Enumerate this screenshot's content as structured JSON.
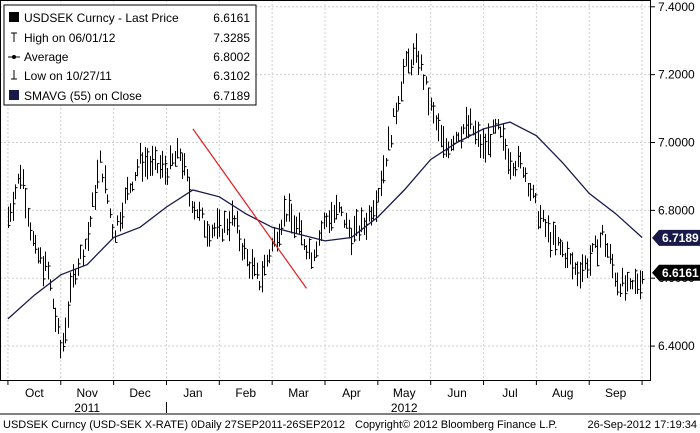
{
  "colors": {
    "background": "#ffffff",
    "plot_background": "#ffffff",
    "price": "#000000",
    "sma": "#1a1a4a",
    "trendline": "#e02020",
    "grid": "#d0d0d0",
    "tag_sma_bg": "#1a1a4a",
    "tag_price_bg": "#000000",
    "tag_text": "#ffffff"
  },
  "legend": [
    {
      "label": "USDSEK Curncy  - Last Price",
      "value": "6.6161",
      "icon": "filled-square-icon"
    },
    {
      "label": "High on 06/01/12",
      "value": "7.3285",
      "icon": "high-marker-icon"
    },
    {
      "label": "Average",
      "value": "6.8002",
      "icon": "average-marker-icon"
    },
    {
      "label": "Low on 10/27/11",
      "value": "6.3102",
      "icon": "low-marker-icon"
    },
    {
      "label": "SMAVG (55) on Close",
      "value": "6.7189",
      "icon": "navy-square-icon"
    }
  ],
  "price_tags": [
    {
      "value": 6.7189,
      "text": "6.7189",
      "kind": "sma"
    },
    {
      "value": 6.6161,
      "text": "6.6161",
      "kind": "price"
    }
  ],
  "footer": {
    "left": "USDSEK Curncy (USD-SEK X-RATE) 0Daily 27SEP2011-26SEP2012",
    "center": "Copyright© 2012 Bloomberg Finance L.P.",
    "right": "26-Sep-2012 17:19:34"
  },
  "chart_data": {
    "type": "line",
    "title": "",
    "xlabel": "",
    "ylabel": "",
    "ylim": [
      6.3,
      7.42
    ],
    "y_ticks": [
      6.4,
      6.6,
      6.8,
      7.0,
      7.2,
      7.4
    ],
    "y_tick_labels": [
      "6.4000",
      "6.6000",
      "6.8000",
      "7.0000",
      "7.2000",
      "7.4000"
    ],
    "y_axis_side": "right",
    "grid": true,
    "legend_position": "top-left",
    "x_ticks": [
      {
        "label": "Oct",
        "x": 0.5
      },
      {
        "label": "Nov",
        "x": 1.5
      },
      {
        "label": "Dec",
        "x": 2.5
      },
      {
        "label": "Jan",
        "x": 3.5
      },
      {
        "label": "Feb",
        "x": 4.5
      },
      {
        "label": "Mar",
        "x": 5.5
      },
      {
        "label": "Apr",
        "x": 6.5
      },
      {
        "label": "May",
        "x": 7.5
      },
      {
        "label": "Jun",
        "x": 8.5
      },
      {
        "label": "Jul",
        "x": 9.5
      },
      {
        "label": "Aug",
        "x": 10.5
      },
      {
        "label": "Sep",
        "x": 11.5
      }
    ],
    "x_month_boundaries": [
      0,
      1,
      2,
      3,
      4,
      5,
      6,
      7,
      8,
      9,
      10,
      11,
      12
    ],
    "years": [
      {
        "label": "2011",
        "x": 1.5
      },
      {
        "label": "2012",
        "x": 7.5
      }
    ],
    "year_separator_x": 3.0,
    "xlim": [
      -0.15,
      12.15
    ],
    "series": [
      {
        "name": "USDSEK Curncy  - Last Price",
        "style": "price",
        "x": [
          0.0,
          0.25,
          0.5,
          0.75,
          1.0,
          1.25,
          1.5,
          1.75,
          2.0,
          2.25,
          2.5,
          2.75,
          3.0,
          3.25,
          3.5,
          3.75,
          4.0,
          4.25,
          4.5,
          4.75,
          5.0,
          5.25,
          5.5,
          5.75,
          6.0,
          6.25,
          6.5,
          6.75,
          7.0,
          7.25,
          7.5,
          7.75,
          8.0,
          8.25,
          8.5,
          8.75,
          9.0,
          9.25,
          9.5,
          9.75,
          10.0,
          10.25,
          10.5,
          10.75,
          11.0,
          11.25,
          11.5,
          11.75,
          12.0
        ],
        "y": [
          6.78,
          6.92,
          6.68,
          6.62,
          6.38,
          6.62,
          6.72,
          6.95,
          6.73,
          6.85,
          6.95,
          6.93,
          6.92,
          6.97,
          6.82,
          6.75,
          6.74,
          6.78,
          6.66,
          6.59,
          6.7,
          6.8,
          6.74,
          6.67,
          6.77,
          6.8,
          6.73,
          6.76,
          6.85,
          7.03,
          7.22,
          7.26,
          7.1,
          6.98,
          7.03,
          7.05,
          6.98,
          7.04,
          6.95,
          6.93,
          6.8,
          6.72,
          6.68,
          6.62,
          6.65,
          6.73,
          6.6,
          6.56,
          6.61
        ]
      },
      {
        "name": "SMAVG (55) on Close",
        "style": "sma",
        "x": [
          0.0,
          0.5,
          1.0,
          1.5,
          2.0,
          2.5,
          3.0,
          3.5,
          4.0,
          4.5,
          5.0,
          5.5,
          6.0,
          6.5,
          7.0,
          7.5,
          8.0,
          8.5,
          9.0,
          9.5,
          10.0,
          10.5,
          11.0,
          11.5,
          12.0
        ],
        "y": [
          6.48,
          6.55,
          6.61,
          6.64,
          6.72,
          6.75,
          6.81,
          6.86,
          6.84,
          6.79,
          6.75,
          6.73,
          6.71,
          6.72,
          6.78,
          6.86,
          6.95,
          7.0,
          7.04,
          7.06,
          7.02,
          6.94,
          6.85,
          6.79,
          6.72
        ]
      },
      {
        "name": "Trendline",
        "style": "trendline",
        "x": [
          3.5,
          5.65
        ],
        "y": [
          7.04,
          6.57
        ]
      }
    ]
  }
}
